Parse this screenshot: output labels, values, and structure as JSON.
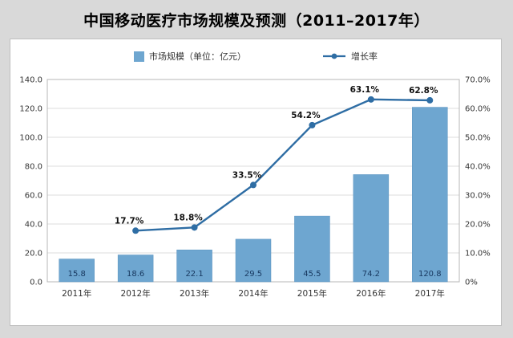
{
  "title": "中国移动医疗市场规模及预测（2011–2017年）",
  "legend": {
    "bars_label": "市场规模（单位：亿元）",
    "line_label": "增长率"
  },
  "chart_data": {
    "type": "combo-bar-line",
    "title": "中国移动医疗市场规模及预测（2011–2017年）",
    "categories": [
      "2011年",
      "2012年",
      "2013年",
      "2014年",
      "2015年",
      "2016年",
      "2017年"
    ],
    "series": [
      {
        "name": "市场规模",
        "type": "bar",
        "unit": "亿元",
        "axis": "left",
        "values": [
          15.8,
          18.6,
          22.1,
          29.5,
          45.5,
          74.2,
          120.8
        ],
        "data_labels": [
          "15.8",
          "18.6",
          "22.1",
          "29.5",
          "45.5",
          "74.2",
          "120.8"
        ]
      },
      {
        "name": "增长率",
        "type": "line",
        "axis": "right",
        "values": [
          null,
          17.7,
          18.8,
          33.5,
          54.2,
          63.1,
          62.8
        ],
        "data_labels": [
          "",
          "17.7%",
          "18.8%",
          "33.5%",
          "54.2%",
          "63.1%",
          "62.8%"
        ]
      }
    ],
    "left_axis": {
      "min": 0,
      "max": 140,
      "step": 20,
      "ticks": [
        "0.0",
        "20.0",
        "40.0",
        "60.0",
        "80.0",
        "100.0",
        "120.0",
        "140.0"
      ]
    },
    "right_axis": {
      "min": 0,
      "max": 70,
      "step": 10,
      "ticks": [
        "0%",
        "10.0%",
        "20.0%",
        "30.0%",
        "40.0%",
        "50.0%",
        "60.0%",
        "70.0%"
      ]
    },
    "grid": true,
    "legend_position": "top"
  },
  "colors": {
    "background": "#d9d9d9",
    "panel": "#ffffff",
    "bar": "#6ea6d0",
    "bar_border": "#5b93bf",
    "bar_label": "#17375e",
    "line": "#2e6da4",
    "axis_text": "#333333",
    "point_label": "#111111",
    "grid": "#dcdcdc",
    "border": "#b7b7b7"
  }
}
